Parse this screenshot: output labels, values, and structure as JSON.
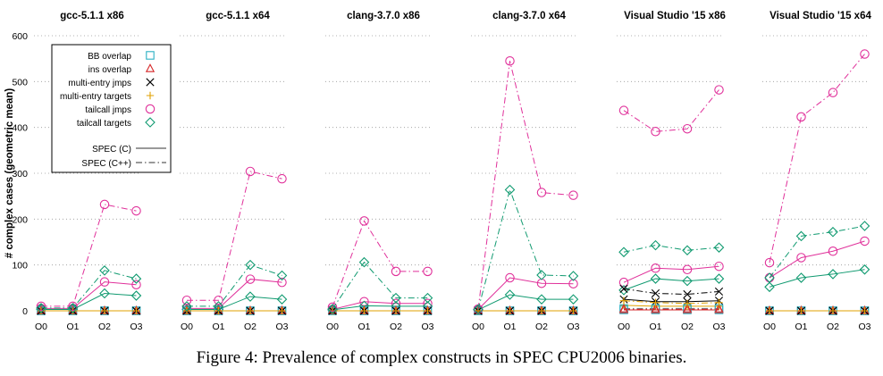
{
  "caption": "Figure 4: Prevalence of complex constructs in SPEC CPU2006 binaries.",
  "colors": {
    "bb_overlap": "#2ab0c4",
    "ins_overlap": "#d62728",
    "multi_entry_jmps": "#000000",
    "multi_entry_targets": "#e0a000",
    "tailcall_jmps": "#e0309a",
    "tailcall_targets": "#109a70",
    "spec_line": "#555555"
  },
  "chart_data": {
    "type": "line",
    "ylabel": "# complex cases (geometric mean)",
    "ylim": [
      0,
      600
    ],
    "yticks": [
      0,
      100,
      200,
      300,
      400,
      500,
      600
    ],
    "categories": [
      "O0",
      "O1",
      "O2",
      "O3"
    ],
    "grid": "horizontal dotted",
    "legend_placement": "top-left",
    "legend": {
      "markers": [
        {
          "key": "bb_overlap",
          "label": "BB overlap",
          "marker": "square"
        },
        {
          "key": "ins_overlap",
          "label": "ins overlap",
          "marker": "triangle"
        },
        {
          "key": "multi_entry_jmps",
          "label": "multi-entry jmps",
          "marker": "x"
        },
        {
          "key": "multi_entry_targets",
          "label": "multi-entry targets",
          "marker": "plus"
        },
        {
          "key": "tailcall_jmps",
          "label": "tailcall jmps",
          "marker": "circle"
        },
        {
          "key": "tailcall_targets",
          "label": "tailcall targets",
          "marker": "diamond"
        }
      ],
      "styles": [
        {
          "label": "SPEC (C)",
          "dash": "solid"
        },
        {
          "label": "SPEC (C++)",
          "dash": "dashdot"
        }
      ]
    },
    "panels": [
      {
        "title": "gcc-5.1.1 x86",
        "series": [
          {
            "key": "bb_overlap",
            "style": "solid",
            "values": [
              0,
              0,
              0,
              0
            ]
          },
          {
            "key": "ins_overlap",
            "style": "solid",
            "values": [
              0,
              0,
              0,
              0
            ]
          },
          {
            "key": "multi_entry_jmps",
            "style": "solid",
            "values": [
              0,
              0,
              0,
              0
            ]
          },
          {
            "key": "multi_entry_targets",
            "style": "solid",
            "values": [
              0,
              0,
              0,
              0
            ]
          },
          {
            "key": "tailcall_jmps",
            "style": "solid",
            "values": [
              5,
              5,
              63,
              57
            ]
          },
          {
            "key": "tailcall_targets",
            "style": "solid",
            "values": [
              3,
              3,
              38,
              33
            ]
          },
          {
            "key": "bb_overlap",
            "style": "dashdot",
            "values": [
              0,
              0,
              0,
              0
            ]
          },
          {
            "key": "ins_overlap",
            "style": "dashdot",
            "values": [
              0,
              0,
              0,
              0
            ]
          },
          {
            "key": "multi_entry_jmps",
            "style": "dashdot",
            "values": [
              0,
              0,
              0,
              0
            ]
          },
          {
            "key": "multi_entry_targets",
            "style": "dashdot",
            "values": [
              0,
              0,
              0,
              0
            ]
          },
          {
            "key": "tailcall_jmps",
            "style": "dashdot",
            "values": [
              10,
              10,
              232,
              218
            ]
          },
          {
            "key": "tailcall_targets",
            "style": "dashdot",
            "values": [
              6,
              6,
              88,
              70
            ]
          }
        ]
      },
      {
        "title": "gcc-5.1.1 x64",
        "series": [
          {
            "key": "bb_overlap",
            "style": "solid",
            "values": [
              0,
              0,
              0,
              0
            ]
          },
          {
            "key": "ins_overlap",
            "style": "solid",
            "values": [
              0,
              0,
              0,
              0
            ]
          },
          {
            "key": "multi_entry_jmps",
            "style": "solid",
            "values": [
              0,
              0,
              0,
              0
            ]
          },
          {
            "key": "multi_entry_targets",
            "style": "solid",
            "values": [
              0,
              0,
              0,
              0
            ]
          },
          {
            "key": "tailcall_jmps",
            "style": "solid",
            "values": [
              5,
              5,
              69,
              62
            ]
          },
          {
            "key": "tailcall_targets",
            "style": "solid",
            "values": [
              3,
              3,
              31,
              25
            ]
          },
          {
            "key": "bb_overlap",
            "style": "dashdot",
            "values": [
              0,
              0,
              0,
              0
            ]
          },
          {
            "key": "ins_overlap",
            "style": "dashdot",
            "values": [
              0,
              0,
              0,
              0
            ]
          },
          {
            "key": "multi_entry_jmps",
            "style": "dashdot",
            "values": [
              0,
              0,
              0,
              0
            ]
          },
          {
            "key": "multi_entry_targets",
            "style": "dashdot",
            "values": [
              0,
              0,
              0,
              0
            ]
          },
          {
            "key": "tailcall_jmps",
            "style": "dashdot",
            "values": [
              23,
              23,
              304,
              288
            ]
          },
          {
            "key": "tailcall_targets",
            "style": "dashdot",
            "values": [
              10,
              10,
              100,
              77
            ]
          }
        ]
      },
      {
        "title": "clang-3.7.0 x86",
        "series": [
          {
            "key": "bb_overlap",
            "style": "solid",
            "values": [
              0,
              0,
              0,
              0
            ]
          },
          {
            "key": "ins_overlap",
            "style": "solid",
            "values": [
              0,
              0,
              0,
              0
            ]
          },
          {
            "key": "multi_entry_jmps",
            "style": "solid",
            "values": [
              0,
              0,
              0,
              0
            ]
          },
          {
            "key": "multi_entry_targets",
            "style": "solid",
            "values": [
              0,
              0,
              0,
              0
            ]
          },
          {
            "key": "tailcall_jmps",
            "style": "solid",
            "values": [
              3,
              20,
              16,
              16
            ]
          },
          {
            "key": "tailcall_targets",
            "style": "solid",
            "values": [
              2,
              11,
              10,
              10
            ]
          },
          {
            "key": "bb_overlap",
            "style": "dashdot",
            "values": [
              0,
              0,
              0,
              0
            ]
          },
          {
            "key": "ins_overlap",
            "style": "dashdot",
            "values": [
              0,
              0,
              0,
              0
            ]
          },
          {
            "key": "multi_entry_jmps",
            "style": "dashdot",
            "values": [
              0,
              0,
              0,
              0
            ]
          },
          {
            "key": "multi_entry_targets",
            "style": "dashdot",
            "values": [
              0,
              0,
              0,
              0
            ]
          },
          {
            "key": "tailcall_jmps",
            "style": "dashdot",
            "values": [
              8,
              196,
              86,
              86
            ]
          },
          {
            "key": "tailcall_targets",
            "style": "dashdot",
            "values": [
              4,
              106,
              28,
              28
            ]
          }
        ]
      },
      {
        "title": "clang-3.7.0 x64",
        "series": [
          {
            "key": "bb_overlap",
            "style": "solid",
            "values": [
              0,
              0,
              0,
              0
            ]
          },
          {
            "key": "ins_overlap",
            "style": "solid",
            "values": [
              0,
              0,
              0,
              0
            ]
          },
          {
            "key": "multi_entry_jmps",
            "style": "solid",
            "values": [
              0,
              0,
              0,
              0
            ]
          },
          {
            "key": "multi_entry_targets",
            "style": "solid",
            "values": [
              0,
              0,
              0,
              0
            ]
          },
          {
            "key": "tailcall_jmps",
            "style": "solid",
            "values": [
              3,
              72,
              60,
              59
            ]
          },
          {
            "key": "tailcall_targets",
            "style": "solid",
            "values": [
              2,
              35,
              25,
              25
            ]
          },
          {
            "key": "bb_overlap",
            "style": "dashdot",
            "values": [
              0,
              0,
              0,
              0
            ]
          },
          {
            "key": "ins_overlap",
            "style": "dashdot",
            "values": [
              0,
              0,
              0,
              0
            ]
          },
          {
            "key": "multi_entry_jmps",
            "style": "dashdot",
            "values": [
              0,
              0,
              0,
              0
            ]
          },
          {
            "key": "multi_entry_targets",
            "style": "dashdot",
            "values": [
              0,
              0,
              0,
              0
            ]
          },
          {
            "key": "tailcall_jmps",
            "style": "dashdot",
            "values": [
              4,
              545,
              258,
              252
            ]
          },
          {
            "key": "tailcall_targets",
            "style": "dashdot",
            "values": [
              3,
              264,
              78,
              76
            ]
          }
        ]
      },
      {
        "title": "Visual Studio '15 x86",
        "series": [
          {
            "key": "bb_overlap",
            "style": "solid",
            "values": [
              2,
              2,
              2,
              2
            ]
          },
          {
            "key": "ins_overlap",
            "style": "solid",
            "values": [
              2,
              2,
              2,
              2
            ]
          },
          {
            "key": "multi_entry_jmps",
            "style": "solid",
            "values": [
              25,
              20,
              20,
              22
            ]
          },
          {
            "key": "multi_entry_targets",
            "style": "solid",
            "values": [
              12,
              10,
              10,
              10
            ]
          },
          {
            "key": "tailcall_jmps",
            "style": "solid",
            "values": [
              62,
              93,
              90,
              97
            ]
          },
          {
            "key": "tailcall_targets",
            "style": "solid",
            "values": [
              45,
              70,
              65,
              70
            ]
          },
          {
            "key": "bb_overlap",
            "style": "dashdot",
            "values": [
              5,
              5,
              5,
              5
            ]
          },
          {
            "key": "ins_overlap",
            "style": "dashdot",
            "values": [
              4,
              4,
              4,
              4
            ]
          },
          {
            "key": "multi_entry_jmps",
            "style": "dashdot",
            "values": [
              48,
              38,
              36,
              42
            ]
          },
          {
            "key": "multi_entry_targets",
            "style": "dashdot",
            "values": [
              22,
              18,
              16,
              18
            ]
          },
          {
            "key": "tailcall_jmps",
            "style": "dashdot",
            "values": [
              437,
              391,
              397,
              482
            ]
          },
          {
            "key": "tailcall_targets",
            "style": "dashdot",
            "values": [
              128,
              143,
              132,
              138
            ]
          }
        ]
      },
      {
        "title": "Visual Studio '15 x64",
        "series": [
          {
            "key": "bb_overlap",
            "style": "solid",
            "values": [
              0,
              0,
              0,
              0
            ]
          },
          {
            "key": "ins_overlap",
            "style": "solid",
            "values": [
              0,
              0,
              0,
              0
            ]
          },
          {
            "key": "multi_entry_jmps",
            "style": "solid",
            "values": [
              0,
              0,
              0,
              0
            ]
          },
          {
            "key": "multi_entry_targets",
            "style": "solid",
            "values": [
              0,
              0,
              0,
              0
            ]
          },
          {
            "key": "tailcall_jmps",
            "style": "solid",
            "values": [
              72,
              116,
              130,
              152
            ]
          },
          {
            "key": "tailcall_targets",
            "style": "solid",
            "values": [
              52,
              72,
              80,
              90
            ]
          },
          {
            "key": "bb_overlap",
            "style": "dashdot",
            "values": [
              0,
              0,
              0,
              0
            ]
          },
          {
            "key": "ins_overlap",
            "style": "dashdot",
            "values": [
              0,
              0,
              0,
              0
            ]
          },
          {
            "key": "multi_entry_jmps",
            "style": "dashdot",
            "values": [
              0,
              0,
              0,
              0
            ]
          },
          {
            "key": "multi_entry_targets",
            "style": "dashdot",
            "values": [
              0,
              0,
              0,
              0
            ]
          },
          {
            "key": "tailcall_jmps",
            "style": "dashdot",
            "values": [
              105,
              423,
              476,
              560
            ]
          },
          {
            "key": "tailcall_targets",
            "style": "dashdot",
            "values": [
              72,
              163,
              172,
              185
            ]
          }
        ]
      }
    ]
  }
}
